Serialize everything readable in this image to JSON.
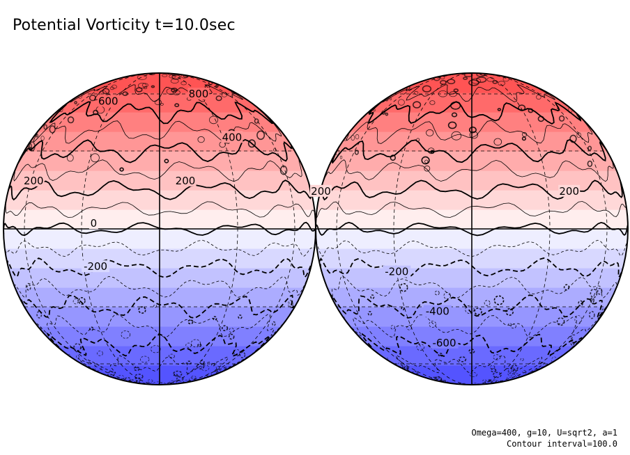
{
  "title": "Potential Vorticity t=10.0sec",
  "footer": {
    "params": "Omega=400, g=10, U=sqrt2, a=1",
    "contour": "Contour interval=100.0"
  },
  "colors": {
    "positive": "#ff3030",
    "negative": "#3030ff",
    "neutral": "#ffffff"
  },
  "contour_range": [
    -800,
    800
  ],
  "globes": [
    {
      "name": "left-hemisphere",
      "labels": [
        {
          "text": "800",
          "lat": 60,
          "lon": 30
        },
        {
          "text": "600",
          "lat": 55,
          "lon": -35
        },
        {
          "text": "400",
          "lat": 36,
          "lon": 35
        },
        {
          "text": "200",
          "lat": 18,
          "lon": -58
        },
        {
          "text": "200",
          "lat": 18,
          "lon": 10
        },
        {
          "text": "0",
          "lat": 2,
          "lon": -25
        },
        {
          "text": "-200",
          "lat": -14,
          "lon": -25
        }
      ]
    },
    {
      "name": "right-hemisphere",
      "labels": [
        {
          "text": "200",
          "lat": 14,
          "lon": -85
        },
        {
          "text": "200",
          "lat": 14,
          "lon": 40
        },
        {
          "text": "-200",
          "lat": -16,
          "lon": -30
        },
        {
          "text": "-400",
          "lat": -32,
          "lon": -15
        },
        {
          "text": "-600",
          "lat": -47,
          "lon": -15
        }
      ]
    }
  ]
}
